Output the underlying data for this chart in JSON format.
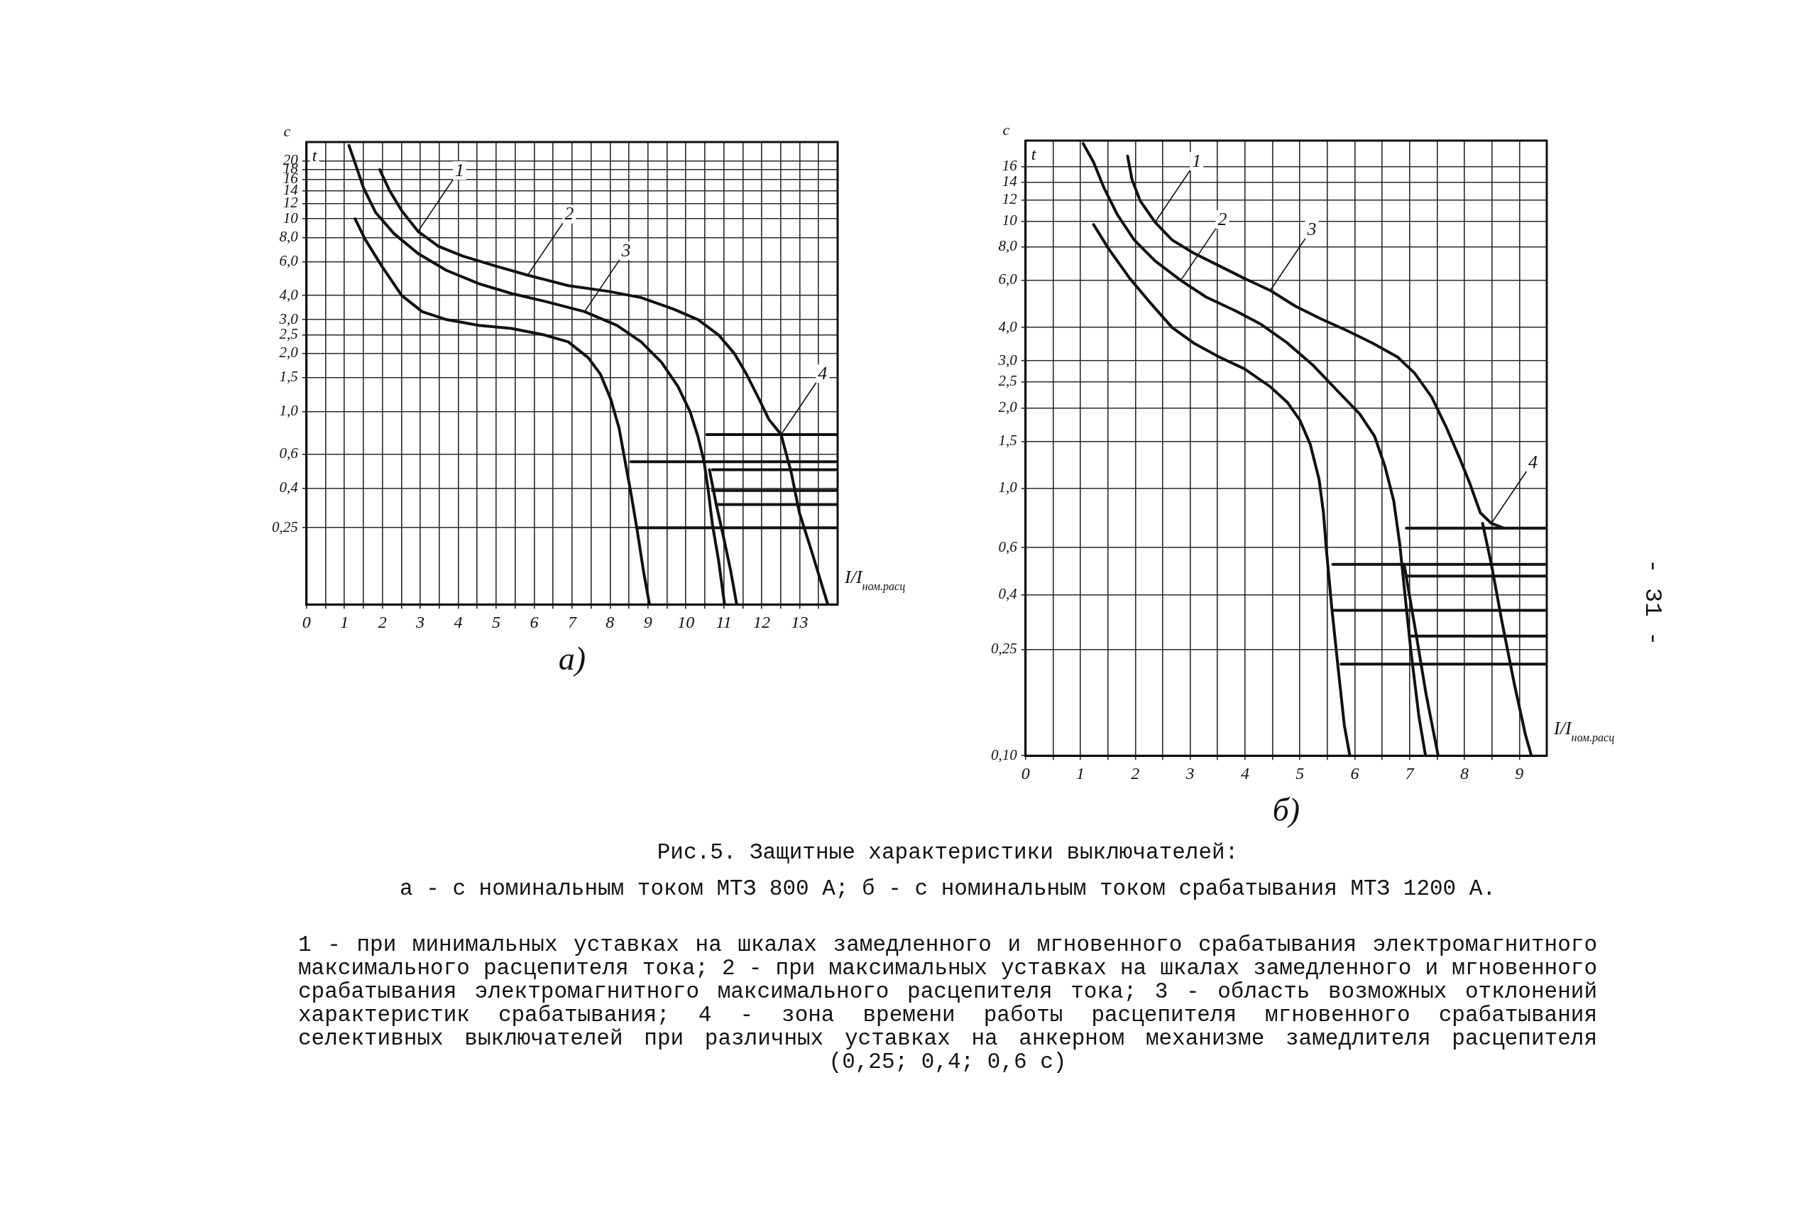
{
  "chart_data": [
    {
      "type": "line",
      "subtitle": "а)",
      "xlabel": "I/I$_{ном.расц}$",
      "ylabel": "с",
      "log": true,
      "grid": true,
      "annotations": [
        "t",
        {
          "text": "1",
          "x": 2.94,
          "y": 8.6
        },
        {
          "text": "2",
          "x": 5.83,
          "y": 5.1
        },
        {
          "text": "3",
          "x": 7.33,
          "y": 3.3
        },
        {
          "text": "4",
          "x": 12.51,
          "y": 0.76
        }
      ],
      "xlim": [
        0,
        14
      ],
      "xticks": [
        0,
        {
          "value": 0.5,
          "label": null
        },
        1,
        {
          "value": 1.5,
          "label": null
        },
        2,
        {
          "value": 2.5,
          "label": null
        },
        3,
        {
          "value": 3.5,
          "label": null
        },
        4,
        {
          "value": 4.5,
          "label": null
        },
        5,
        {
          "value": 5.5,
          "label": null
        },
        6,
        {
          "value": 6.5,
          "label": null
        },
        7,
        {
          "value": 7.5,
          "label": null
        },
        8,
        {
          "value": 8.5,
          "label": null
        },
        9,
        {
          "value": 9.5,
          "label": null
        },
        10,
        {
          "value": 10.5,
          "label": null
        },
        11,
        {
          "value": 11.5,
          "label": null
        },
        12,
        {
          "value": 12.5,
          "label": null
        },
        13,
        {
          "value": 13.5,
          "label": null
        }
      ],
      "ylim": [
        0.1,
        25
      ],
      "yticks": [
        {
          "value": 0.25,
          "label": "0,25"
        },
        {
          "value": 0.4,
          "label": "0,4"
        },
        {
          "value": 0.6,
          "label": "0,6"
        },
        {
          "value": 1,
          "label": "1,0"
        },
        {
          "value": 1.5,
          "label": "1,5"
        },
        {
          "value": 2,
          "label": "2,0"
        },
        {
          "value": 2.5,
          "label": "2,5"
        },
        {
          "value": 3,
          "label": "3,0"
        },
        {
          "value": 4,
          "label": "4,0"
        },
        {
          "value": 6,
          "label": "6,0"
        },
        {
          "value": 8,
          "label": "8,0"
        },
        10,
        12,
        14,
        16,
        18,
        20
      ],
      "series": [
        {
          "color": "#111111",
          "x": [
            1.93,
            2.19,
            2.51,
            2.94,
            3.48,
            4.12,
            4.97,
            5.83,
            6.9,
            7.97,
            8.82,
            9.68,
            10.32,
            10.86,
            11.28,
            11.6,
            11.93,
            12.19,
            12.51,
            12.78,
            12.99,
            13.31,
            13.74
          ],
          "values": [
            18,
            14,
            11,
            8.6,
            7.2,
            6.4,
            5.7,
            5.1,
            4.5,
            4.2,
            3.9,
            3.4,
            3.0,
            2.5,
            2.0,
            1.56,
            1.16,
            0.91,
            0.76,
            0.48,
            0.3,
            0.19,
            0.1
          ]
        },
        {
          "color": "#111111",
          "x": [
            1.12,
            1.28,
            1.5,
            1.82,
            2.3,
            2.94,
            3.69,
            4.55,
            5.4,
            6.36,
            7.33,
            8.18,
            8.82,
            9.36,
            9.79,
            10.11,
            10.32,
            10.48,
            10.59,
            10.7,
            10.86,
            11.02
          ],
          "values": [
            24,
            19.5,
            14.5,
            10.8,
            8.4,
            6.6,
            5.4,
            4.6,
            4.1,
            3.7,
            3.3,
            2.8,
            2.3,
            1.8,
            1.35,
            1.0,
            0.74,
            0.55,
            0.39,
            0.26,
            0.17,
            0.1
          ]
        },
        {
          "color": "#111111",
          "x": [
            1.28,
            1.55,
            1.98,
            2.51,
            3.05,
            3.69,
            4.55,
            5.4,
            6.26,
            6.9,
            7.43,
            7.75,
            8.02,
            8.24,
            8.4,
            8.56,
            8.72,
            8.88,
            9.04
          ],
          "values": [
            10,
            7.8,
            5.7,
            4.0,
            3.3,
            3.0,
            2.8,
            2.7,
            2.5,
            2.3,
            1.9,
            1.56,
            1.16,
            0.82,
            0.55,
            0.37,
            0.24,
            0.15,
            0.1
          ]
        },
        {
          "color": "#111111",
          "x": [
            10.62,
            10.8,
            11.0,
            11.18,
            11.34
          ],
          "values": [
            0.5,
            0.33,
            0.22,
            0.15,
            0.1
          ]
        },
        {
          "color": "#111111",
          "x": [
            10.55,
            14
          ],
          "values": [
            0.76,
            0.76
          ]
        },
        {
          "color": "#111111",
          "x": [
            8.55,
            14
          ],
          "values": [
            0.55,
            0.55
          ]
        },
        {
          "color": "#111111",
          "x": [
            10.7,
            14
          ],
          "values": [
            0.5,
            0.5
          ]
        },
        {
          "color": "#111111",
          "x": [
            10.7,
            14
          ],
          "values": [
            0.39,
            0.39
          ]
        },
        {
          "color": "#111111",
          "x": [
            10.8,
            14
          ],
          "values": [
            0.33,
            0.33
          ]
        },
        {
          "color": "#111111",
          "x": [
            8.7,
            14
          ],
          "values": [
            0.25,
            0.25
          ]
        }
      ]
    },
    {
      "type": "line",
      "subtitle": "б)",
      "xlabel": "I/I$_{ном.расц}$",
      "ylabel": "с",
      "log": true,
      "grid": true,
      "annotations": [
        "t",
        {
          "text": "1",
          "x": 2.36,
          "y": 9.9
        },
        {
          "text": "2",
          "x": 2.83,
          "y": 6.0
        },
        {
          "text": "3",
          "x": 4.46,
          "y": 5.5
        },
        {
          "text": "4",
          "x": 8.49,
          "y": 0.74
        }
      ],
      "xlim": [
        0,
        9.5
      ],
      "xticks": [
        0,
        {
          "value": 0.5,
          "label": null
        },
        1,
        {
          "value": 1.5,
          "label": null
        },
        2,
        {
          "value": 2.5,
          "label": null
        },
        3,
        {
          "value": 3.5,
          "label": null
        },
        4,
        {
          "value": 4.5,
          "label": null
        },
        5,
        {
          "value": 5.5,
          "label": null
        },
        6,
        {
          "value": 6.5,
          "label": null
        },
        7,
        {
          "value": 7.5,
          "label": null
        },
        8,
        {
          "value": 8.5,
          "label": null
        },
        9
      ],
      "ylim": [
        0.1,
        20
      ],
      "yticks": [
        {
          "value": 0.1,
          "label": "0,10"
        },
        {
          "value": 0.25,
          "label": "0,25"
        },
        {
          "value": 0.4,
          "label": "0,4"
        },
        {
          "value": 0.6,
          "label": "0,6"
        },
        {
          "value": 1,
          "label": "1,0"
        },
        {
          "value": 1.5,
          "label": "1,5"
        },
        {
          "value": 2,
          "label": "2,0"
        },
        {
          "value": 2.5,
          "label": "2,5"
        },
        {
          "value": 3,
          "label": "3,0"
        },
        {
          "value": 4,
          "label": "4,0"
        },
        {
          "value": 6,
          "label": "6,0"
        },
        {
          "value": 8,
          "label": "8,0"
        },
        10,
        12,
        14,
        16
      ],
      "series": [
        {
          "color": "#111111",
          "x": [
            1.05,
            1.24,
            1.43,
            1.67,
            1.98,
            2.36,
            2.83,
            3.29,
            3.84,
            4.3,
            4.77,
            5.23,
            5.7,
            6.09,
            6.36,
            6.55,
            6.71,
            6.82,
            6.9,
            7.02,
            7.17,
            7.29
          ],
          "values": [
            19.5,
            16.6,
            13.3,
            10.6,
            8.5,
            7.1,
            6.0,
            5.2,
            4.6,
            4.1,
            3.5,
            2.9,
            2.3,
            1.9,
            1.57,
            1.21,
            0.9,
            0.62,
            0.43,
            0.25,
            0.14,
            0.1
          ]
        },
        {
          "color": "#111111",
          "x": [
            1.86,
            1.94,
            2.09,
            2.36,
            2.67,
            3.06,
            3.53,
            3.99,
            4.46,
            4.92,
            5.39,
            5.85,
            6.32,
            6.78,
            7.09,
            7.4,
            7.67,
            7.91,
            8.1,
            8.29,
            8.49,
            8.72
          ],
          "values": [
            17.5,
            14.3,
            11.9,
            9.9,
            8.5,
            7.6,
            6.8,
            6.1,
            5.5,
            4.8,
            4.3,
            3.9,
            3.5,
            3.1,
            2.7,
            2.2,
            1.69,
            1.3,
            1.04,
            0.81,
            0.74,
            0.71
          ]
        },
        {
          "color": "#111111",
          "x": [
            1.24,
            1.51,
            1.9,
            2.29,
            2.67,
            3.06,
            3.53,
            3.99,
            4.46,
            4.77,
            5.0,
            5.19,
            5.35,
            5.43,
            5.48,
            5.58,
            5.7,
            5.81,
            5.91
          ],
          "values": [
            9.7,
            7.9,
            6.1,
            4.9,
            4.0,
            3.5,
            3.1,
            2.8,
            2.4,
            2.1,
            1.8,
            1.46,
            1.08,
            0.81,
            0.6,
            0.36,
            0.21,
            0.13,
            0.1
          ]
        },
        {
          "color": "#111111",
          "x": [
            8.33,
            8.49,
            8.68,
            8.91,
            9.11,
            9.22
          ],
          "values": [
            0.74,
            0.52,
            0.32,
            0.185,
            0.12,
            0.1
          ]
        },
        {
          "color": "#111111",
          "x": [
            6.9,
            7.1,
            7.3,
            7.52
          ],
          "values": [
            0.52,
            0.3,
            0.17,
            0.1
          ]
        },
        {
          "color": "#111111",
          "x": [
            6.94,
            9.5
          ],
          "values": [
            0.71,
            0.71
          ]
        },
        {
          "color": "#111111",
          "x": [
            5.6,
            9.5
          ],
          "values": [
            0.52,
            0.52
          ]
        },
        {
          "color": "#111111",
          "x": [
            6.95,
            9.5
          ],
          "values": [
            0.47,
            0.47
          ]
        },
        {
          "color": "#111111",
          "x": [
            5.6,
            9.5
          ],
          "values": [
            0.35,
            0.35
          ]
        },
        {
          "color": "#111111",
          "x": [
            7.0,
            9.5
          ],
          "values": [
            0.28,
            0.28
          ]
        },
        {
          "color": "#111111",
          "x": [
            5.75,
            9.5
          ],
          "values": [
            0.22,
            0.22
          ]
        }
      ]
    },
    {
      "type": "other",
      "title": "Рис.5. Защитные характеристики выключателей:",
      "subtitle": "а - с номинальным током МТЗ 800 А; б - с номинальным током срабатывания МТЗ 1200 А.",
      "annotations": [
        "1 - при минимальных уставках на шкалах замедленного и мгновенного срабатывания электромагнитного максимального расцепителя тока; 2 - при максимальных уставках на шкалах замедленного и мгновенного срабатывания электромагнитного максимального расцепителя тока; 3 - область возможных отклонений характеристик срабатывания; 4 - зона времени работы расцепителя мгновенного срабатывания селективных выключателей при различных уставках на анкерном механизме замедлителя расцепителя (0,25; 0,4; 0,6 с)",
        "- 31 -"
      ]
    }
  ]
}
